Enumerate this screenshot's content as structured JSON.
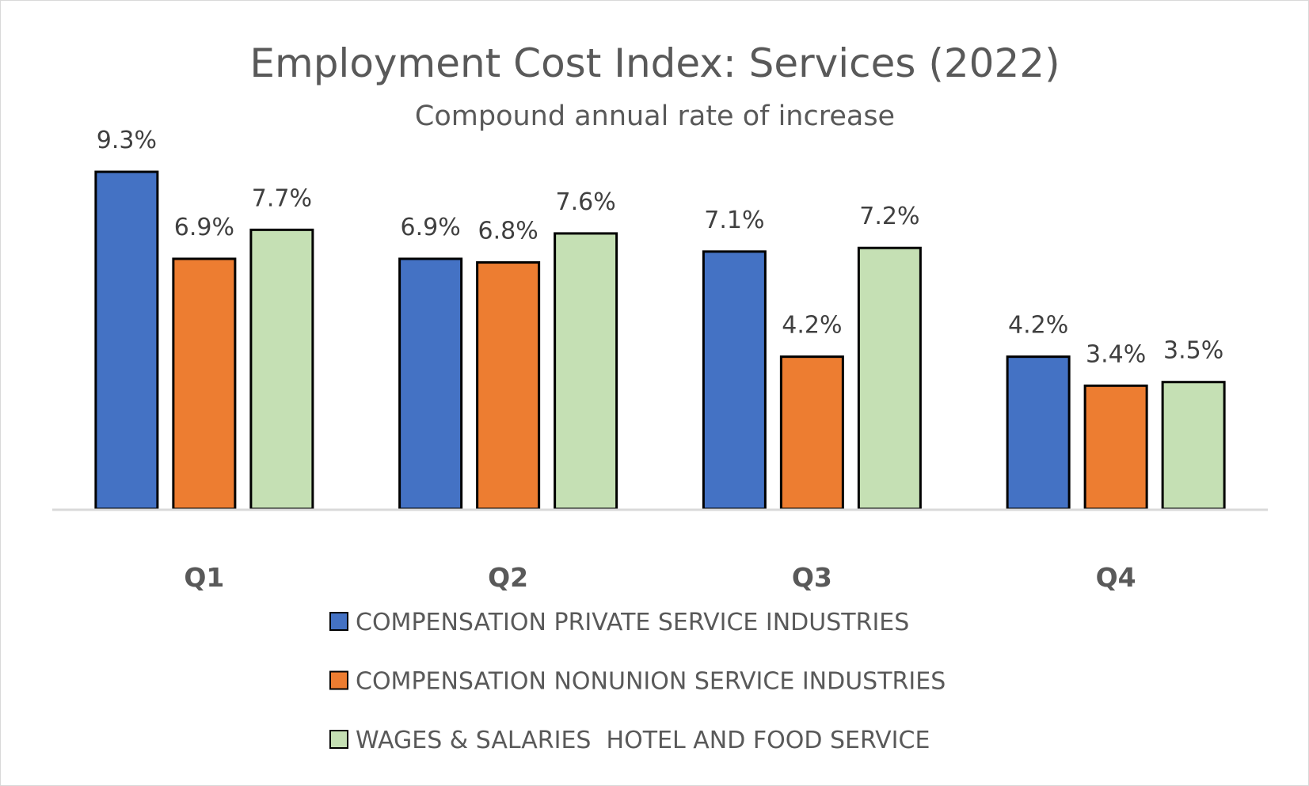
{
  "chart_data": {
    "type": "bar",
    "title": "Employment Cost Index: Services (2022)",
    "subtitle": "Compound annual rate of increase",
    "categories": [
      "Q1",
      "Q2",
      "Q3",
      "Q4"
    ],
    "series": [
      {
        "name": "COMPENSATION PRIVATE SERVICE INDUSTRIES",
        "color": "#4472C4",
        "values": [
          9.3,
          6.9,
          7.1,
          4.2
        ],
        "labels": [
          "9.3%",
          "6.9%",
          "7.1%",
          "4.2%"
        ]
      },
      {
        "name": "COMPENSATION NONUNION SERVICE INDUSTRIES",
        "color": "#ED7D31",
        "values": [
          6.9,
          6.8,
          4.2,
          3.4
        ],
        "labels": [
          "6.9%",
          "6.8%",
          "4.2%",
          "3.4%"
        ]
      },
      {
        "name": "WAGES & SALARIES  HOTEL AND FOOD SERVICE",
        "color": "#C5E0B4",
        "values": [
          7.7,
          7.6,
          7.2,
          3.5
        ],
        "labels": [
          "7.7%",
          "7.6%",
          "7.2%",
          "3.5%"
        ]
      }
    ],
    "xlabel": "",
    "ylabel": "",
    "ylim": [
      0,
      10
    ],
    "grid": false,
    "legend": "bottom"
  }
}
